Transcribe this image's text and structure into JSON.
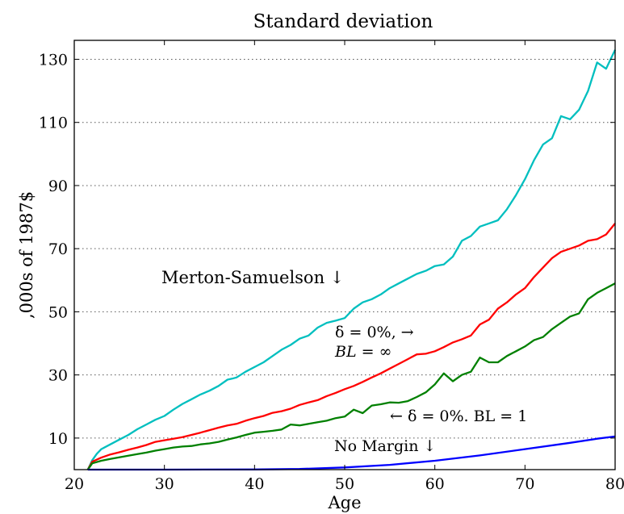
{
  "chart_data": {
    "type": "line",
    "title": "Standard deviation",
    "xlabel": "Age",
    "ylabel": ",000s of 1987$",
    "xlim": [
      20,
      80
    ],
    "ylim": [
      0,
      136
    ],
    "xticks": [
      20,
      30,
      40,
      50,
      60,
      70,
      80
    ],
    "yticks": [
      10,
      30,
      50,
      70,
      90,
      110,
      130
    ],
    "grid": "horizontal dotted",
    "series": [
      {
        "color": "#00bfbf",
        "x": [
          21.5,
          22,
          22.5,
          23,
          24,
          25,
          26,
          27,
          28,
          29,
          30,
          31,
          32,
          33,
          34,
          35,
          36,
          37,
          37.5,
          38,
          39,
          40,
          41,
          42,
          43,
          44,
          45,
          46,
          47,
          48,
          49,
          50,
          51,
          52,
          53,
          54,
          55,
          56,
          57,
          58,
          59,
          60,
          61,
          62,
          63,
          64,
          65,
          66,
          67,
          68,
          69,
          70,
          71,
          72,
          73,
          74,
          75,
          76,
          77,
          78,
          79,
          80
        ],
        "y": [
          0,
          3,
          5,
          6.5,
          8,
          9.5,
          11,
          12.8,
          14.3,
          15.8,
          17,
          19,
          20.8,
          22.3,
          23.8,
          25,
          26.5,
          28.5,
          28.8,
          29.2,
          31,
          32.5,
          34,
          36,
          38,
          39.5,
          41.5,
          42.5,
          45,
          46.5,
          47.2,
          48,
          51,
          53,
          54,
          55.5,
          57.5,
          59,
          60.5,
          62,
          63,
          64.5,
          65,
          67.5,
          72.5,
          74,
          77,
          78,
          79,
          82.5,
          87,
          92,
          98,
          103,
          105,
          112,
          111,
          114,
          120,
          129,
          127,
          133
        ]
      },
      {
        "color": "#ff0000",
        "x": [
          21.5,
          22,
          23,
          24,
          25,
          26,
          27,
          28,
          29,
          30,
          31,
          32,
          33,
          34,
          35,
          36,
          37,
          38,
          39,
          40,
          41,
          42,
          43,
          44,
          45,
          46,
          47,
          48,
          49,
          50,
          51,
          52,
          53,
          54,
          55,
          56,
          57,
          58,
          59,
          60,
          61,
          62,
          63,
          64,
          65,
          66,
          67,
          68,
          69,
          70,
          71,
          72,
          73,
          74,
          75,
          76,
          77,
          78,
          79,
          80
        ],
        "y": [
          0,
          2.5,
          3.8,
          4.8,
          5.5,
          6.3,
          7,
          7.8,
          8.8,
          9.3,
          9.8,
          10.3,
          11,
          11.7,
          12.5,
          13.3,
          14,
          14.5,
          15.5,
          16.3,
          17,
          18,
          18.5,
          19.3,
          20.5,
          21.3,
          22,
          23.3,
          24.3,
          25.5,
          26.5,
          27.8,
          29.2,
          30.5,
          32,
          33.5,
          35,
          36.5,
          36.7,
          37.5,
          38.8,
          40.3,
          41.3,
          42.5,
          46,
          47.5,
          51,
          53,
          55.5,
          57.5,
          61,
          64,
          67,
          69,
          70,
          71,
          72.5,
          73,
          74.5,
          78
        ]
      },
      {
        "color": "#008000",
        "x": [
          21.5,
          22,
          23,
          24,
          25,
          26,
          27,
          28,
          29,
          30,
          31,
          32,
          33,
          34,
          35,
          36,
          37,
          38,
          39,
          40,
          41,
          42,
          43,
          44,
          45,
          46,
          47,
          48,
          49,
          50,
          51,
          52,
          53,
          54,
          55,
          56,
          57,
          58,
          59,
          60,
          61,
          62,
          63,
          64,
          65,
          66,
          67,
          68,
          69,
          70,
          71,
          72,
          73,
          74,
          75,
          76,
          77,
          78,
          79,
          80
        ],
        "y": [
          0,
          2,
          2.8,
          3.4,
          3.9,
          4.4,
          4.9,
          5.4,
          6,
          6.5,
          7,
          7.3,
          7.5,
          8,
          8.3,
          8.8,
          9.5,
          10.2,
          11,
          11.7,
          12,
          12.3,
          12.7,
          14.3,
          14,
          14.5,
          15,
          15.5,
          16.3,
          16.8,
          19,
          17.9,
          20.3,
          20.7,
          21.3,
          21.2,
          21.7,
          23,
          24.5,
          27,
          30.5,
          28,
          30,
          31,
          35.5,
          34,
          34,
          36,
          37.5,
          39,
          41,
          42,
          44.5,
          46.5,
          48.5,
          49.5,
          54,
          56,
          57.5,
          59
        ]
      },
      {
        "color": "#0000ff",
        "x": [
          21.5,
          30,
          40,
          45,
          50,
          55,
          60,
          65,
          70,
          75,
          78,
          80
        ],
        "y": [
          0,
          0,
          0.05,
          0.2,
          0.7,
          1.5,
          2.8,
          4.5,
          6.5,
          8.5,
          9.8,
          10.5
        ]
      }
    ],
    "annotations": [
      {
        "text": "Merton-Samuelson ↓"
      },
      {
        "text": "δ  =  0%, →",
        "line2": "BL = ∞"
      },
      {
        "text": "← δ = 0%.  BL = 1"
      },
      {
        "text": "No Margin ↓"
      }
    ]
  }
}
